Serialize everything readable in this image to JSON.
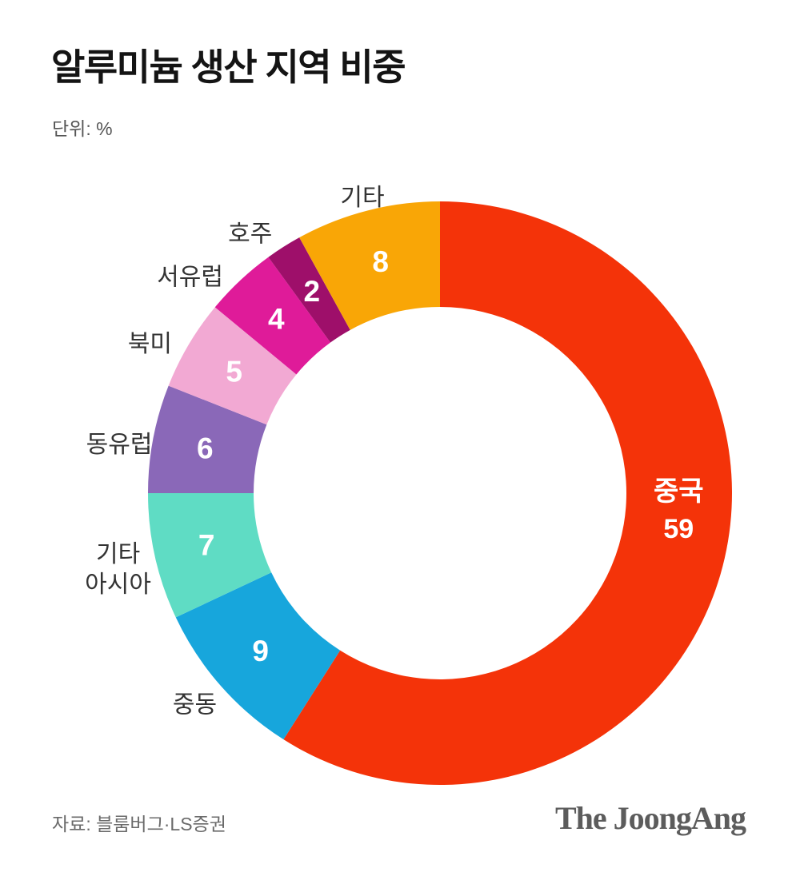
{
  "page": {
    "title": "알루미늄 생산 지역 비중",
    "unit_label": "단위: %",
    "source": "자료: 블룸버그·LS증권",
    "logo": "The JoongAng"
  },
  "chart_data": {
    "type": "pie",
    "subtype": "donut",
    "title": "알루미늄 생산 지역 비중",
    "unit": "%",
    "start_angle": "top",
    "direction": "clockwise",
    "total": 100,
    "slices": [
      {
        "key": "china",
        "name": "중국",
        "value": 59,
        "color": "#F43309",
        "label_inside_name": true
      },
      {
        "key": "middle-east",
        "name": "중동",
        "value": 9,
        "color": "#17A6DC"
      },
      {
        "key": "other-asia",
        "name": "기타\n아시아",
        "value": 7,
        "color": "#5FDCC4"
      },
      {
        "key": "east-europe",
        "name": "동유럽",
        "value": 6,
        "color": "#8A68B8"
      },
      {
        "key": "north-america",
        "name": "북미",
        "value": 5,
        "color": "#F2A9D3"
      },
      {
        "key": "west-europe",
        "name": "서유럽",
        "value": 4,
        "color": "#DF1B99"
      },
      {
        "key": "australia",
        "name": "호주",
        "value": 2,
        "color": "#9E0F6A"
      },
      {
        "key": "other",
        "name": "기타",
        "value": 8,
        "color": "#F9A606"
      }
    ],
    "value_label_color": "#ffffff",
    "name_label_color": "#333333"
  }
}
